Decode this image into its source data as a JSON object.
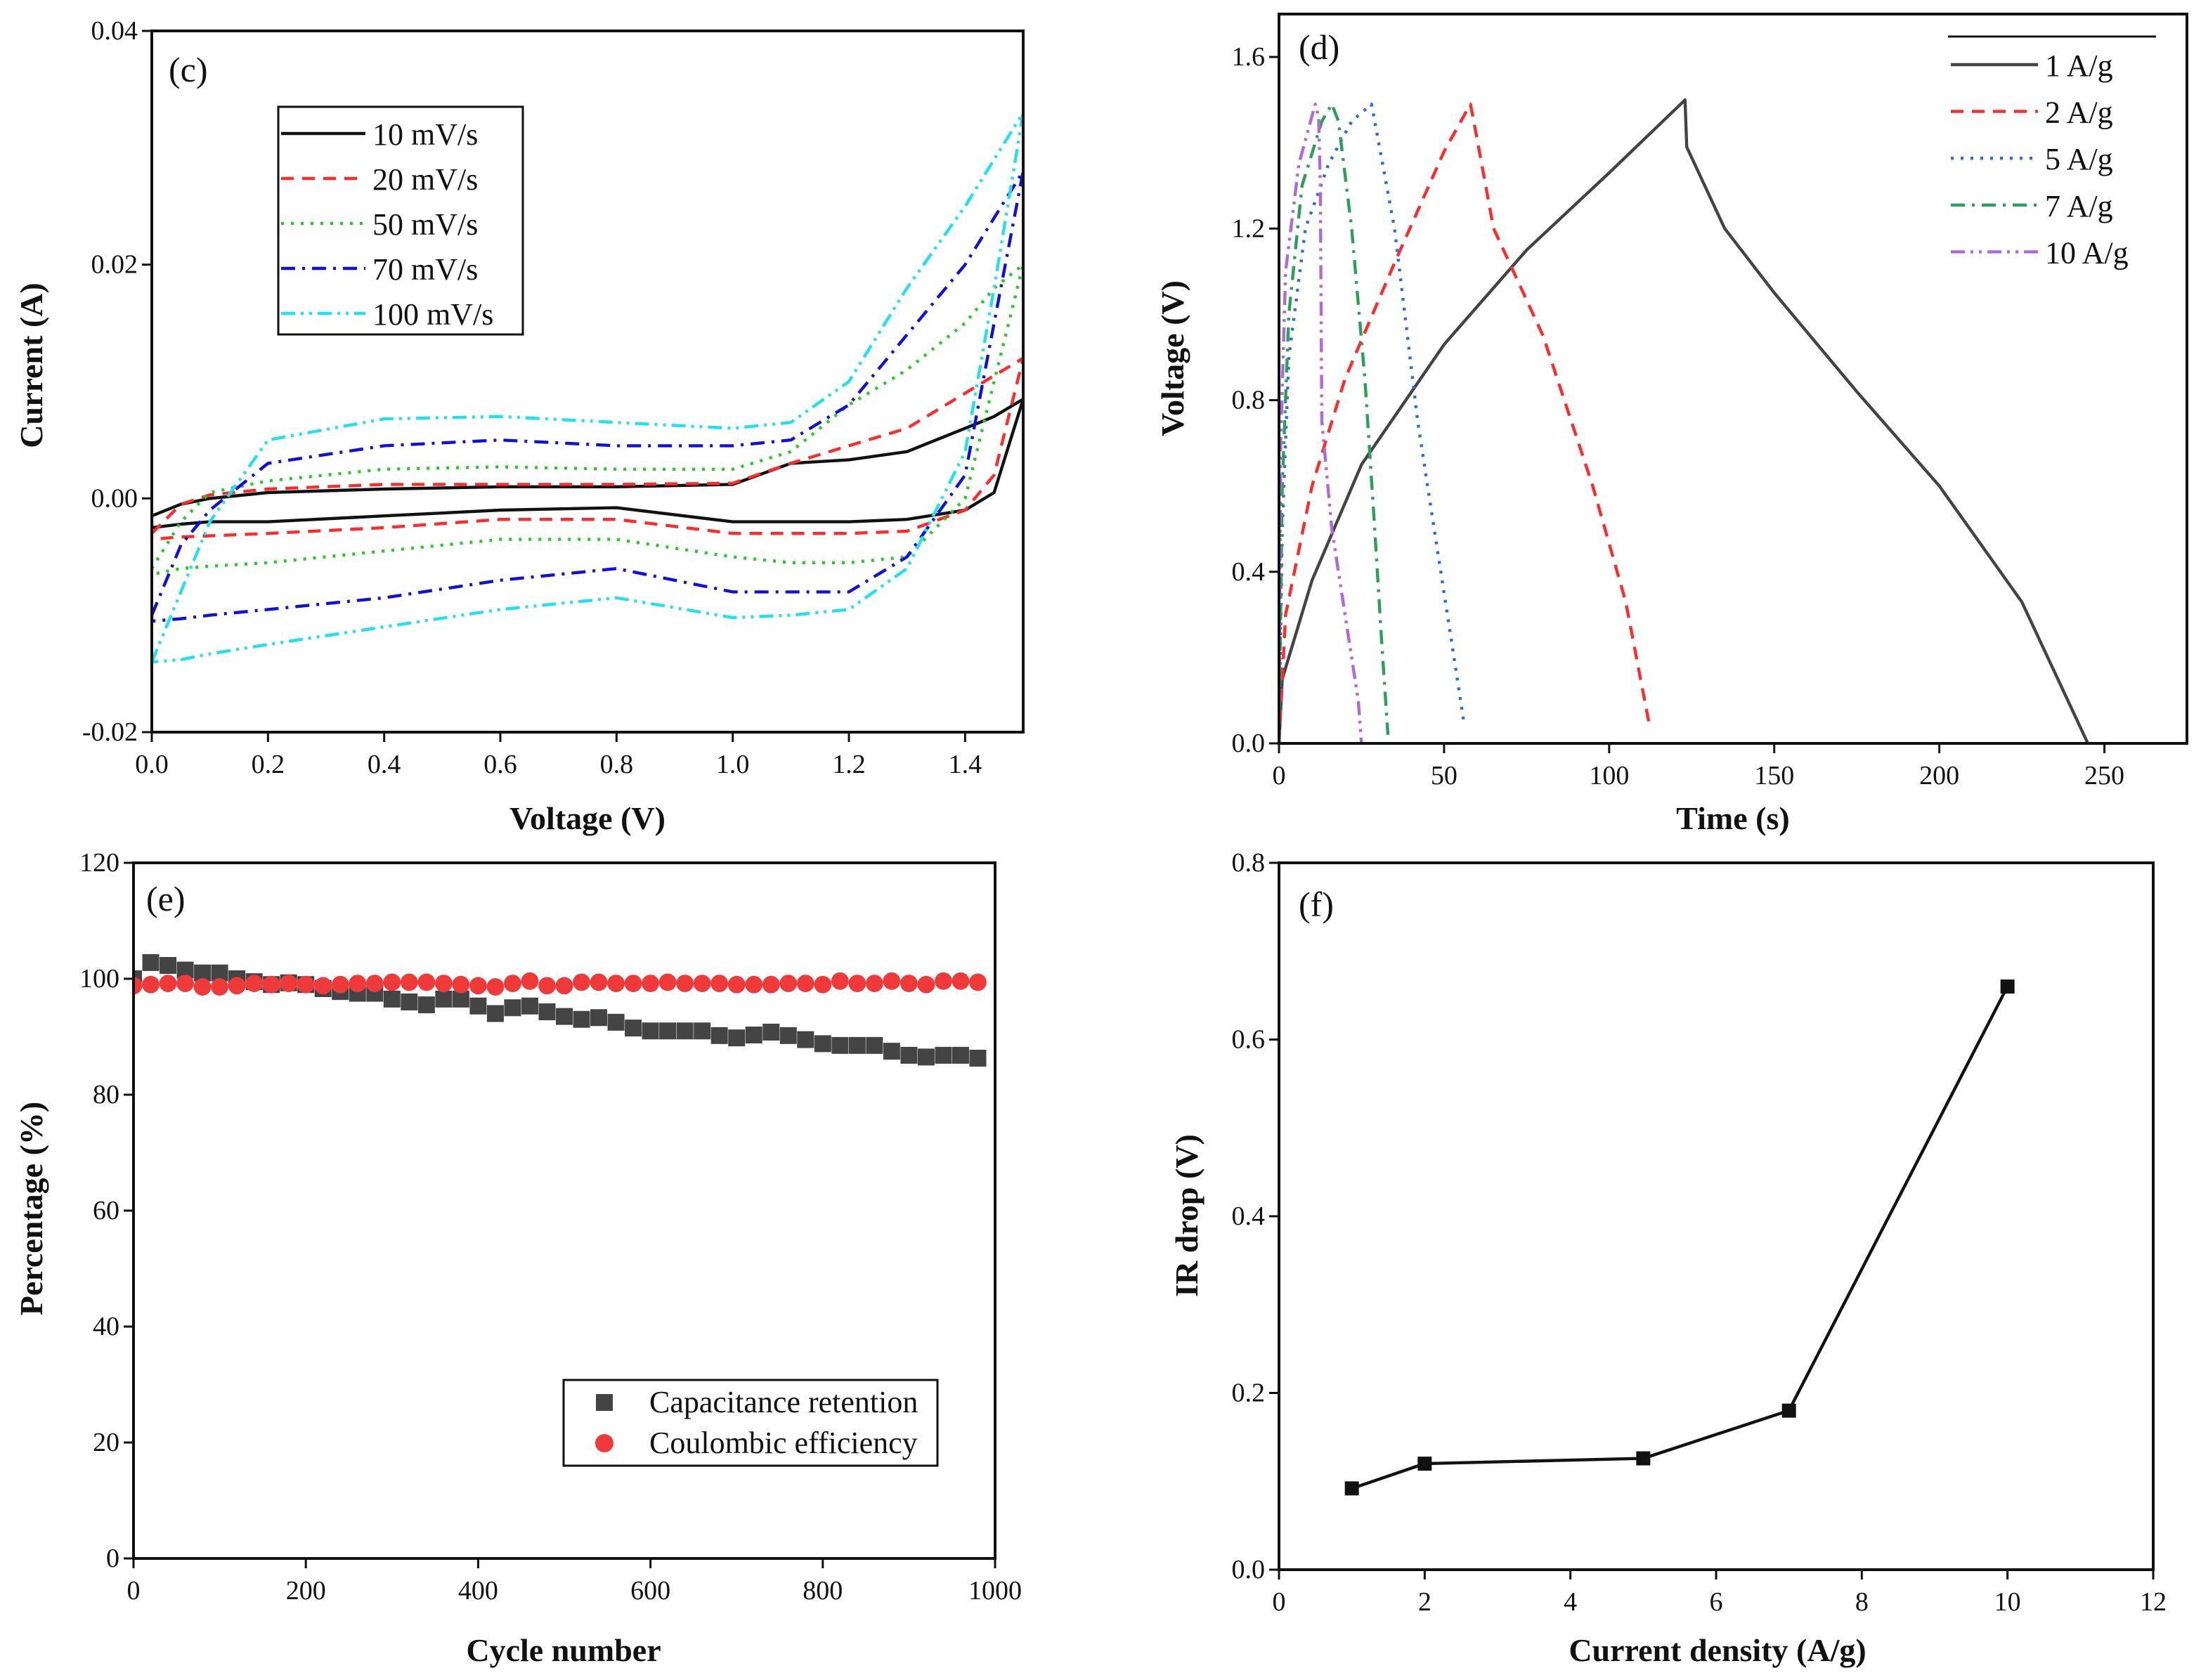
{
  "chart_data": [
    {
      "panel": "(c)",
      "type": "line",
      "xlabel": "Voltage (V)",
      "ylabel": "Current (A)",
      "xlim": [
        0,
        1.5
      ],
      "ylim": [
        -0.02,
        0.04
      ],
      "xticks": [
        "0.0",
        "0.2",
        "0.4",
        "0.6",
        "0.8",
        "1.0",
        "1.2",
        "1.4"
      ],
      "yticks": [
        "-0.02",
        "0.00",
        "0.02",
        "0.04"
      ],
      "legend_position": "top-left",
      "x": [
        0,
        0.05,
        0.1,
        0.2,
        0.4,
        0.6,
        0.8,
        1.0,
        1.1,
        1.2,
        1.3,
        1.4,
        1.45,
        1.5
      ],
      "series": [
        {
          "name": "10 mV/s",
          "color": "#111111",
          "dash": "solid",
          "upper": [
            -0.0015,
            -0.0005,
            0,
            0.0005,
            0.0008,
            0.001,
            0.001,
            0.0012,
            0.003,
            0.0033,
            0.004,
            0.006,
            0.007,
            0.0085
          ],
          "lower": [
            -0.0025,
            -0.0022,
            -0.002,
            -0.002,
            -0.0015,
            -0.001,
            -0.0008,
            -0.002,
            -0.002,
            -0.002,
            -0.0018,
            -0.001,
            0.0005,
            0.0085
          ]
        },
        {
          "name": "20 mV/s",
          "color": "#ff2b2b",
          "dash": "dashed",
          "upper": [
            -0.003,
            -0.0005,
            0.0003,
            0.0008,
            0.0012,
            0.0012,
            0.0012,
            0.0013,
            0.003,
            0.0045,
            0.006,
            0.009,
            0.0105,
            0.012
          ],
          "lower": [
            -0.0035,
            -0.0033,
            -0.0032,
            -0.003,
            -0.0025,
            -0.0018,
            -0.0018,
            -0.003,
            -0.003,
            -0.003,
            -0.0028,
            -0.001,
            0.002,
            0.012
          ]
        },
        {
          "name": "50 mV/s",
          "color": "#22cc22",
          "dash": "dotted",
          "upper": [
            -0.006,
            -0.002,
            0.0005,
            0.0015,
            0.0025,
            0.0027,
            0.0025,
            0.0025,
            0.004,
            0.008,
            0.011,
            0.015,
            0.018,
            0.02
          ],
          "lower": [
            -0.0065,
            -0.006,
            -0.0058,
            -0.0055,
            -0.0045,
            -0.0035,
            -0.0035,
            -0.005,
            -0.0055,
            -0.0055,
            -0.005,
            0,
            0.01,
            0.02
          ]
        },
        {
          "name": "70 mV/s",
          "color": "#1010dd",
          "dash": "dashdot",
          "upper": [
            -0.01,
            -0.004,
            -0.001,
            0.003,
            0.0045,
            0.005,
            0.0045,
            0.0045,
            0.005,
            0.008,
            0.014,
            0.02,
            0.024,
            0.028
          ],
          "lower": [
            -0.0105,
            -0.0103,
            -0.01,
            -0.0095,
            -0.0085,
            -0.007,
            -0.006,
            -0.008,
            -0.008,
            -0.008,
            -0.005,
            0.002,
            0.015,
            0.028
          ]
        },
        {
          "name": "100 mV/s",
          "color": "#22e0f0",
          "dash": "dashdotdot",
          "upper": [
            -0.014,
            -0.008,
            -0.002,
            0.005,
            0.0068,
            0.007,
            0.0065,
            0.006,
            0.0065,
            0.01,
            0.018,
            0.025,
            0.029,
            0.033
          ],
          "lower": [
            -0.014,
            -0.0138,
            -0.0133,
            -0.0125,
            -0.011,
            -0.0095,
            -0.0085,
            -0.0102,
            -0.01,
            -0.0095,
            -0.006,
            0.004,
            0.018,
            0.033
          ]
        }
      ]
    },
    {
      "panel": "(d)",
      "type": "line",
      "xlabel": "Time (s)",
      "ylabel": "Voltage (V)",
      "xlim": [
        0,
        275
      ],
      "ylim": [
        0,
        1.7
      ],
      "xticks": [
        "0",
        "50",
        "100",
        "150",
        "200",
        "250"
      ],
      "yticks": [
        "0.0",
        "0.4",
        "0.8",
        "1.2",
        "1.6"
      ],
      "legend_position": "top-right",
      "series": [
        {
          "name": "1 A/g",
          "color": "#444444",
          "dash": "solid",
          "points": [
            [
              0,
              0
            ],
            [
              1,
              0.15
            ],
            [
              10,
              0.38
            ],
            [
              25,
              0.65
            ],
            [
              50,
              0.93
            ],
            [
              75,
              1.15
            ],
            [
              100,
              1.33
            ],
            [
              123,
              1.5
            ],
            [
              123.5,
              1.39
            ],
            [
              135,
              1.2
            ],
            [
              150,
              1.05
            ],
            [
              175,
              0.82
            ],
            [
              200,
              0.6
            ],
            [
              225,
              0.33
            ],
            [
              245,
              0
            ]
          ]
        },
        {
          "name": "2 A/g",
          "color": "#ff2b2b",
          "dash": "dashed",
          "points": [
            [
              0,
              0
            ],
            [
              2,
              0.3
            ],
            [
              10,
              0.6
            ],
            [
              20,
              0.85
            ],
            [
              35,
              1.12
            ],
            [
              50,
              1.38
            ],
            [
              58,
              1.49
            ],
            [
              59,
              1.45
            ],
            [
              65,
              1.2
            ],
            [
              80,
              0.95
            ],
            [
              95,
              0.6
            ],
            [
              105,
              0.33
            ],
            [
              112,
              0.05
            ]
          ]
        },
        {
          "name": "5 A/g",
          "color": "#2a6be0",
          "dash": "dotted",
          "points": [
            [
              0,
              0
            ],
            [
              1,
              0.5
            ],
            [
              3,
              0.9
            ],
            [
              8,
              1.2
            ],
            [
              15,
              1.35
            ],
            [
              22,
              1.45
            ],
            [
              28,
              1.49
            ],
            [
              29,
              1.45
            ],
            [
              35,
              1.2
            ],
            [
              42,
              0.75
            ],
            [
              47,
              0.5
            ],
            [
              52,
              0.25
            ],
            [
              56,
              0.05
            ]
          ]
        },
        {
          "name": "7 A/g",
          "color": "#2ca05a",
          "dash": "dashdot",
          "points": [
            [
              0,
              0
            ],
            [
              1,
              0.6
            ],
            [
              3,
              1.0
            ],
            [
              7,
              1.3
            ],
            [
              13,
              1.45
            ],
            [
              16,
              1.49
            ],
            [
              18,
              1.45
            ],
            [
              22,
              1.2
            ],
            [
              26,
              0.85
            ],
            [
              29,
              0.5
            ],
            [
              31,
              0.25
            ],
            [
              33,
              0.02
            ]
          ]
        },
        {
          "name": "10 A/g",
          "color": "#b06ad8",
          "dash": "dashdotdot",
          "points": [
            [
              0,
              0
            ],
            [
              0.5,
              0.7
            ],
            [
              2,
              1.1
            ],
            [
              6,
              1.35
            ],
            [
              11,
              1.49
            ],
            [
              12,
              1.46
            ],
            [
              12.5,
              1.3
            ],
            [
              13,
              0.75
            ],
            [
              16,
              0.5
            ],
            [
              20,
              0.3
            ],
            [
              24,
              0.1
            ],
            [
              25,
              0
            ]
          ]
        }
      ]
    },
    {
      "panel": "(e)",
      "type": "scatter",
      "xlabel": "Cycle number",
      "ylabel": "Percentage (%)",
      "xlim": [
        0,
        1000
      ],
      "ylim": [
        0,
        120
      ],
      "xticks": [
        "0",
        "200",
        "400",
        "600",
        "800",
        "1000"
      ],
      "yticks": [
        "0",
        "20",
        "40",
        "60",
        "80",
        "100",
        "120"
      ],
      "legend_position": "bottom-right",
      "x_step": 20,
      "series": [
        {
          "name": "Capacitance retention",
          "color": "#444444",
          "marker": "square",
          "values": [
            100,
            102.8,
            102.3,
            101.5,
            101,
            101,
            100,
            99.5,
            99,
            99.3,
            99,
            98.3,
            97.8,
            97.5,
            97.5,
            96.5,
            96,
            95.5,
            96.5,
            96.5,
            95.3,
            94,
            95,
            95.3,
            94.3,
            93.5,
            93,
            93.3,
            92.5,
            91.5,
            91,
            91,
            91,
            91,
            90.2,
            89.8,
            90.3,
            90.8,
            90.2,
            89.5,
            88.8,
            88.5,
            88.5,
            88.5,
            87.5,
            86.8,
            86.5,
            86.8,
            86.8,
            86.3
          ]
        },
        {
          "name": "Coulombic efficiency",
          "color": "#f03a3a",
          "marker": "circle",
          "values": [
            98.8,
            99,
            99.2,
            99.2,
            98.6,
            98.6,
            98.8,
            99.2,
            99,
            99.2,
            99,
            98.8,
            99,
            99.2,
            99.2,
            99.4,
            99.4,
            99.4,
            99.2,
            99,
            98.8,
            98.6,
            99.2,
            99.6,
            98.8,
            98.8,
            99.4,
            99.4,
            99.2,
            99.2,
            99.2,
            99.4,
            99.2,
            99.2,
            99.2,
            99,
            99,
            99,
            99.2,
            99.2,
            99,
            99.6,
            99.2,
            99.2,
            99.6,
            99.2,
            99,
            99.6,
            99.6,
            99.4
          ]
        }
      ]
    },
    {
      "panel": "(f)",
      "type": "line",
      "xlabel": "Current density (A/g)",
      "ylabel": "IR drop (V)",
      "xlim": [
        0,
        12
      ],
      "ylim": [
        0,
        0.8
      ],
      "xticks": [
        "0",
        "2",
        "4",
        "6",
        "8",
        "10",
        "12"
      ],
      "yticks": [
        "0.0",
        "0.2",
        "0.4",
        "0.6",
        "0.8"
      ],
      "series": [
        {
          "name": "IR drop",
          "color": "#111111",
          "marker": "square",
          "points": [
            [
              1,
              0.092
            ],
            [
              2,
              0.12
            ],
            [
              5,
              0.126
            ],
            [
              7,
              0.18
            ],
            [
              10,
              0.66
            ]
          ]
        }
      ]
    }
  ]
}
